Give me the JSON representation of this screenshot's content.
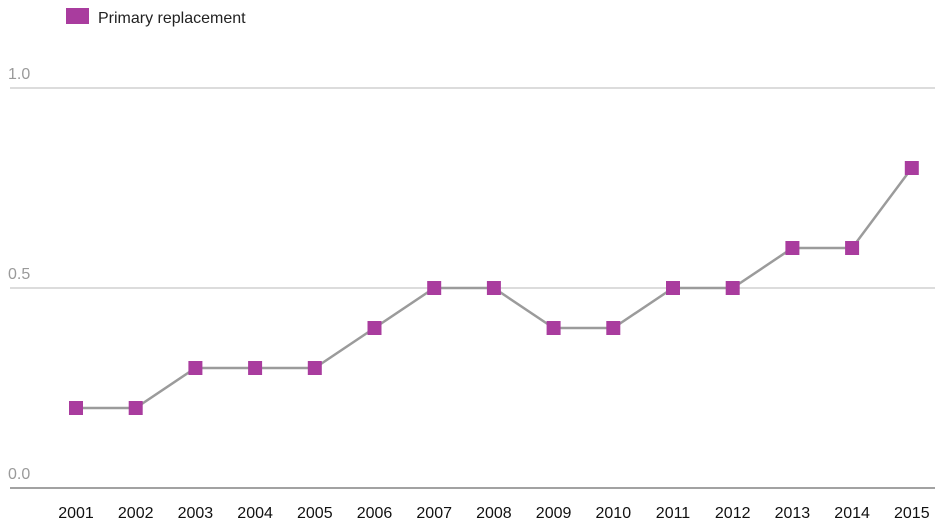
{
  "chart_data": {
    "type": "line",
    "title": "",
    "xlabel": "",
    "ylabel": "",
    "categories": [
      "2001",
      "2002",
      "2003",
      "2004",
      "2005",
      "2006",
      "2007",
      "2008",
      "2009",
      "2010",
      "2011",
      "2012",
      "2013",
      "2014",
      "2015"
    ],
    "series": [
      {
        "name": "Primary replacement",
        "values": [
          0.2,
          0.2,
          0.3,
          0.3,
          0.3,
          0.4,
          0.5,
          0.5,
          0.4,
          0.4,
          0.5,
          0.5,
          0.6,
          0.6,
          0.8
        ],
        "marker": "square",
        "marker_color": "#a93c9e",
        "line_color": "#9b9b9b"
      }
    ],
    "ylim": [
      0,
      1.0
    ],
    "yticks": [
      "0.0",
      "0.5",
      "1.0"
    ],
    "grid": true,
    "legend_position": "top-left"
  }
}
